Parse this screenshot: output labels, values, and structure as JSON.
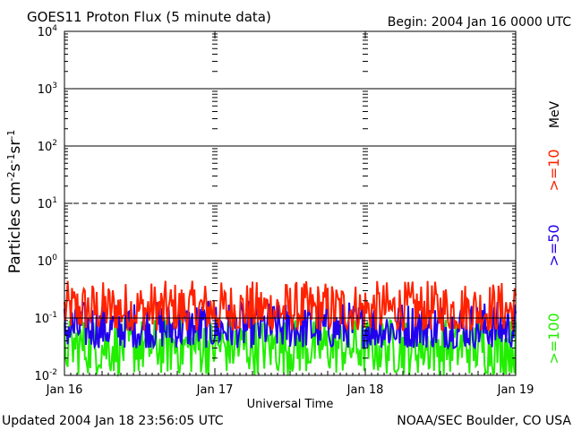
{
  "header": {
    "title": "GOES11 Proton Flux (5 minute data)",
    "begin": "Begin: 2004 Jan 16 0000 UTC"
  },
  "footer": {
    "updated": "Updated 2004 Jan 18 23:56:05 UTC",
    "source": "NOAA/SEC Boulder, CO USA"
  },
  "chart_data": {
    "type": "line",
    "title": "GOES11 Proton Flux (5 minute data)",
    "xlabel": "Universal Time",
    "ylabel": "Particles cm-2s-1sr-1",
    "yscale": "log",
    "ylim": [
      0.01,
      10000
    ],
    "xlim_days": [
      0,
      3
    ],
    "x_ticks": [
      "Jan 16",
      "Jan 17",
      "Jan 18",
      "Jan 19"
    ],
    "y_ticks": [
      {
        "base": "10",
        "exp": "-2"
      },
      {
        "base": "10",
        "exp": "-1"
      },
      {
        "base": "10",
        "exp": "0"
      },
      {
        "base": "10",
        "exp": "1"
      },
      {
        "base": "10",
        "exp": "2"
      },
      {
        "base": "10",
        "exp": "3"
      },
      {
        "base": "10",
        "exp": "4"
      }
    ],
    "threshold_lines": [
      {
        "value": 0.1,
        "style": "solid"
      },
      {
        "value": 1,
        "style": "solid"
      },
      {
        "value": 10,
        "style": "dashed"
      },
      {
        "value": 100,
        "style": "solid"
      },
      {
        "value": 1000,
        "style": "solid"
      }
    ],
    "series": [
      {
        "name": ">=10",
        "color": "#ff2200",
        "range": [
          0.06,
          0.45
        ],
        "typical": 0.15
      },
      {
        "name": ">=50",
        "color": "#2200ee",
        "range": [
          0.03,
          0.2
        ],
        "typical": 0.08
      },
      {
        "name": ">=100",
        "color": "#22ee00",
        "range": [
          0.01,
          0.1
        ],
        "typical": 0.03
      }
    ],
    "energy_unit": "MeV"
  }
}
